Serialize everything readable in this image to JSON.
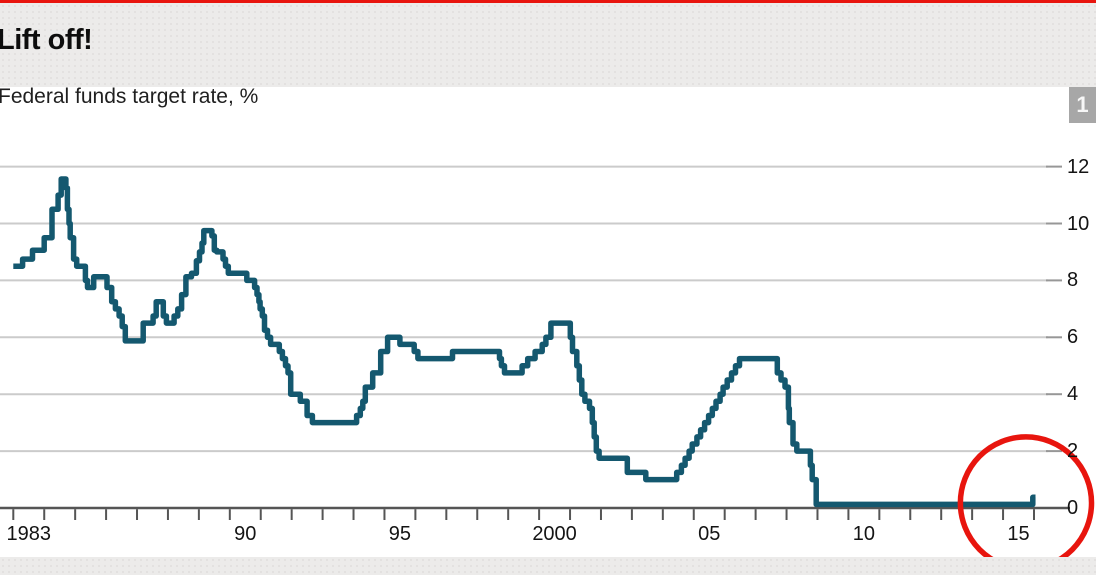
{
  "header": {
    "title": "Lift off!",
    "subtitle": "Federal funds target rate, %",
    "panel_number": "1"
  },
  "colors": {
    "accent_red": "#E8150E",
    "line_teal": "#14586F",
    "gridline": "#CBCBCB",
    "grid_stub": "#979797",
    "axis": "#555555",
    "label_text": "#141414",
    "header_bg": "#ECEBEA",
    "badge_bg": "#A7A7A7"
  },
  "chart_data": {
    "type": "line",
    "style": "step-after",
    "title": "Lift off!",
    "subtitle": "Federal funds target rate, %",
    "ylabel": "%",
    "ylim": [
      0,
      13
    ],
    "xlim": [
      1983,
      2016.2
    ],
    "grid": "horizontal",
    "legend": "none",
    "y_ticks": [
      12,
      10,
      8,
      6,
      4,
      2,
      0
    ],
    "x_tick_years_every": 1,
    "x_tick_year_start": 1983,
    "x_tick_year_end": 2016,
    "x_labels": [
      {
        "year": 1983,
        "label": "1983"
      },
      {
        "year": 1990,
        "label": "90"
      },
      {
        "year": 1995,
        "label": "95"
      },
      {
        "year": 2000,
        "label": "2000"
      },
      {
        "year": 2005,
        "label": "05"
      },
      {
        "year": 2010,
        "label": "10"
      },
      {
        "year": 2015,
        "label": "15"
      }
    ],
    "series": [
      {
        "name": "Federal funds target rate",
        "points": [
          [
            1983.0,
            8.5
          ],
          [
            1983.3,
            8.75
          ],
          [
            1983.62,
            9.0625
          ],
          [
            1984.0,
            9.5
          ],
          [
            1984.25,
            10.5
          ],
          [
            1984.45,
            11.0
          ],
          [
            1984.55,
            11.5625
          ],
          [
            1984.7,
            11.25
          ],
          [
            1984.75,
            10.5
          ],
          [
            1984.8,
            10.0
          ],
          [
            1984.84,
            9.5
          ],
          [
            1984.95,
            8.75
          ],
          [
            1985.05,
            8.5
          ],
          [
            1985.33,
            8.0
          ],
          [
            1985.4,
            7.75
          ],
          [
            1985.6,
            8.125
          ],
          [
            1986.03,
            7.75
          ],
          [
            1986.18,
            7.25
          ],
          [
            1986.3,
            7.0
          ],
          [
            1986.42,
            6.75
          ],
          [
            1986.52,
            6.375
          ],
          [
            1986.62,
            5.875
          ],
          [
            1987.2,
            6.5
          ],
          [
            1987.52,
            6.75
          ],
          [
            1987.62,
            7.25
          ],
          [
            1987.85,
            6.75
          ],
          [
            1987.95,
            6.5
          ],
          [
            1988.2,
            6.75
          ],
          [
            1988.32,
            7.0
          ],
          [
            1988.44,
            7.5
          ],
          [
            1988.58,
            8.125
          ],
          [
            1988.76,
            8.25
          ],
          [
            1988.92,
            8.6875
          ],
          [
            1989.02,
            9.0
          ],
          [
            1989.1,
            9.3125
          ],
          [
            1989.16,
            9.75
          ],
          [
            1989.42,
            9.5625
          ],
          [
            1989.5,
            9.0625
          ],
          [
            1989.58,
            9.0
          ],
          [
            1989.78,
            8.75
          ],
          [
            1989.86,
            8.5
          ],
          [
            1989.95,
            8.25
          ],
          [
            1990.55,
            8.0
          ],
          [
            1990.8,
            7.75
          ],
          [
            1990.88,
            7.5
          ],
          [
            1990.94,
            7.25
          ],
          [
            1990.98,
            7.0
          ],
          [
            1991.05,
            6.75
          ],
          [
            1991.12,
            6.25
          ],
          [
            1991.22,
            6.0
          ],
          [
            1991.32,
            5.75
          ],
          [
            1991.6,
            5.5
          ],
          [
            1991.7,
            5.25
          ],
          [
            1991.8,
            5.0
          ],
          [
            1991.88,
            4.75
          ],
          [
            1991.97,
            4.0
          ],
          [
            1992.28,
            3.75
          ],
          [
            1992.5,
            3.25
          ],
          [
            1992.67,
            3.0
          ],
          [
            1994.1,
            3.25
          ],
          [
            1994.22,
            3.5
          ],
          [
            1994.3,
            3.75
          ],
          [
            1994.38,
            4.25
          ],
          [
            1994.62,
            4.75
          ],
          [
            1994.88,
            5.5
          ],
          [
            1995.1,
            6.0
          ],
          [
            1995.5,
            5.75
          ],
          [
            1995.96,
            5.5
          ],
          [
            1996.08,
            5.25
          ],
          [
            1997.2,
            5.5
          ],
          [
            1998.72,
            5.25
          ],
          [
            1998.78,
            5.0
          ],
          [
            1998.88,
            4.75
          ],
          [
            1999.45,
            5.0
          ],
          [
            1999.63,
            5.25
          ],
          [
            1999.87,
            5.5
          ],
          [
            2000.1,
            5.75
          ],
          [
            2000.22,
            6.0
          ],
          [
            2000.38,
            6.5
          ],
          [
            2001.01,
            6.0
          ],
          [
            2001.08,
            5.5
          ],
          [
            2001.22,
            5.0
          ],
          [
            2001.3,
            4.5
          ],
          [
            2001.38,
            4.0
          ],
          [
            2001.48,
            3.75
          ],
          [
            2001.63,
            3.5
          ],
          [
            2001.72,
            3.0
          ],
          [
            2001.78,
            2.5
          ],
          [
            2001.85,
            2.0
          ],
          [
            2001.94,
            1.75
          ],
          [
            2002.85,
            1.25
          ],
          [
            2003.45,
            1.0
          ],
          [
            2004.45,
            1.25
          ],
          [
            2004.6,
            1.5
          ],
          [
            2004.72,
            1.75
          ],
          [
            2004.85,
            2.0
          ],
          [
            2004.95,
            2.25
          ],
          [
            2005.1,
            2.5
          ],
          [
            2005.22,
            2.75
          ],
          [
            2005.35,
            3.0
          ],
          [
            2005.48,
            3.25
          ],
          [
            2005.6,
            3.5
          ],
          [
            2005.72,
            3.75
          ],
          [
            2005.85,
            4.0
          ],
          [
            2005.95,
            4.25
          ],
          [
            2006.08,
            4.5
          ],
          [
            2006.22,
            4.75
          ],
          [
            2006.35,
            5.0
          ],
          [
            2006.48,
            5.25
          ],
          [
            2007.7,
            4.75
          ],
          [
            2007.82,
            4.5
          ],
          [
            2007.95,
            4.25
          ],
          [
            2008.06,
            3.5
          ],
          [
            2008.09,
            3.0
          ],
          [
            2008.21,
            2.25
          ],
          [
            2008.33,
            2.0
          ],
          [
            2008.77,
            1.5
          ],
          [
            2008.83,
            1.0
          ],
          [
            2008.96,
            0.125
          ],
          [
            2015.96,
            0.375
          ],
          [
            2016.05,
            0.375
          ]
        ]
      }
    ],
    "annotation": {
      "shape": "ellipse",
      "meaning": "circle highlighting the December 2015 rate lift-off",
      "center_year": 2015.74,
      "center_value": 0.18,
      "rx_years": 2.12,
      "ry_units": 2.32
    }
  }
}
